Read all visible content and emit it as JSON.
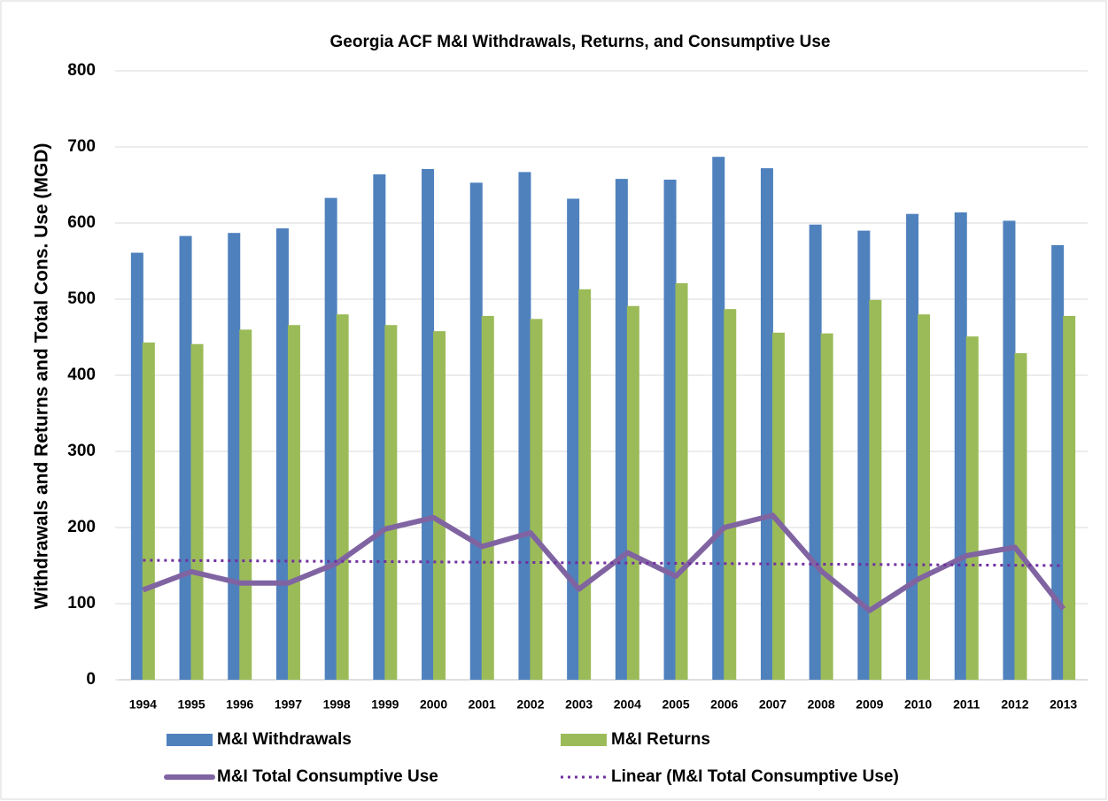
{
  "chart_data": {
    "type": "bar_line",
    "title": "Georgia ACF M&I Withdrawals, Returns, and Consumptive Use",
    "y_label": "Withdrawals and Returns and Total Cons. Use (MGD)",
    "categories": [
      "1994",
      "1995",
      "1996",
      "1997",
      "1998",
      "1999",
      "2000",
      "2001",
      "2002",
      "2003",
      "2004",
      "2005",
      "2006",
      "2007",
      "2008",
      "2009",
      "2010",
      "2011",
      "2012",
      "2013"
    ],
    "series": [
      {
        "name": "M&I Withdrawals",
        "type": "bar",
        "color": "#4f81bd",
        "values": [
          561,
          583,
          587,
          593,
          633,
          664,
          671,
          653,
          667,
          632,
          658,
          657,
          687,
          672,
          598,
          590,
          612,
          614,
          603,
          571
        ]
      },
      {
        "name": "M&I Returns",
        "type": "bar",
        "color": "#9bbb59",
        "values": [
          443,
          441,
          460,
          466,
          480,
          466,
          458,
          478,
          474,
          513,
          491,
          521,
          487,
          456,
          455,
          499,
          480,
          451,
          429,
          478
        ]
      },
      {
        "name": "M&I Total Consumptive Use",
        "type": "line",
        "color": "#8064a2",
        "values": [
          118,
          142,
          127,
          127,
          153,
          198,
          213,
          175,
          193,
          119,
          167,
          136,
          200,
          216,
          143,
          91,
          132,
          163,
          174,
          93
        ]
      },
      {
        "name": "Linear (M&I Total Consumptive Use)",
        "type": "line",
        "dotted": true,
        "color": "#7030a0",
        "values": [
          157.0,
          156.6,
          156.3,
          155.9,
          155.5,
          155.2,
          154.8,
          154.4,
          154.1,
          153.7,
          153.3,
          152.9,
          152.6,
          152.2,
          151.8,
          151.5,
          151.1,
          150.7,
          150.4,
          150.0
        ]
      }
    ],
    "ylim": [
      0,
      800
    ],
    "yticks": [
      0,
      100,
      200,
      300,
      400,
      500,
      600,
      700,
      800
    ],
    "grid": true
  }
}
